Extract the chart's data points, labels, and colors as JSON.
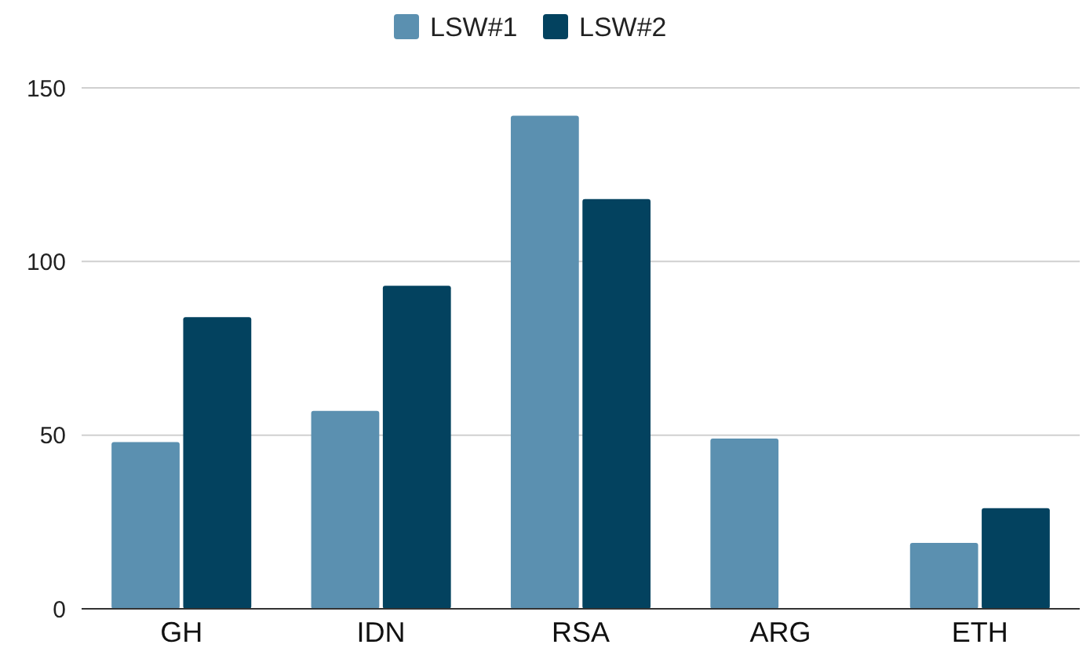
{
  "chart_data": {
    "type": "bar",
    "categories": [
      "GH",
      "IDN",
      "RSA",
      "ARG",
      "ETH"
    ],
    "series": [
      {
        "name": "LSW#1",
        "color": "#5b90b0",
        "values": [
          48,
          57,
          142,
          49,
          19
        ]
      },
      {
        "name": "LSW#2",
        "color": "#03425f",
        "values": [
          84,
          93,
          118,
          null,
          29
        ]
      }
    ],
    "ylim": [
      0,
      150
    ],
    "yticks": [
      0,
      50,
      100,
      150
    ],
    "grid": "y",
    "legend": "top"
  }
}
